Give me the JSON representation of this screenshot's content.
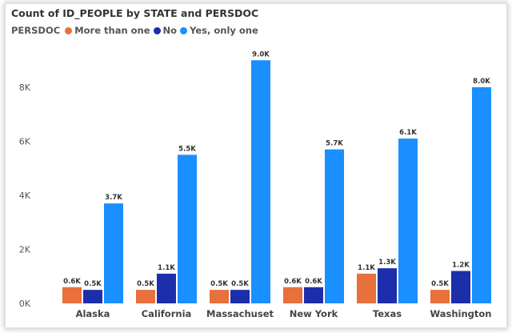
{
  "chart_data": {
    "type": "bar",
    "title": "Count of ID_PEOPLE by STATE and PERSDOC",
    "legend_title": "PERSDOC",
    "legend_position": "top-left",
    "categories": [
      "Alaska",
      "California",
      "Massachuset",
      "New York",
      "Texas",
      "Washington"
    ],
    "series": [
      {
        "name": "More than one",
        "color": "#e8703a",
        "values": [
          0.6,
          0.5,
          0.5,
          0.6,
          1.1,
          0.5
        ],
        "labels": [
          "0.6K",
          "0.5K",
          "0.5K",
          "0.6K",
          "1.1K",
          "0.5K"
        ]
      },
      {
        "name": "No",
        "color": "#1c2eaa",
        "values": [
          0.5,
          1.1,
          0.5,
          0.6,
          1.3,
          1.2
        ],
        "labels": [
          "0.5K",
          "1.1K",
          "0.5K",
          "0.6K",
          "1.3K",
          "1.2K"
        ]
      },
      {
        "name": "Yes, only one",
        "color": "#1a8fff",
        "values": [
          3.7,
          5.5,
          9.0,
          5.7,
          6.1,
          8.0
        ],
        "labels": [
          "3.7K",
          "5.5K",
          "9.0K",
          "5.7K",
          "6.1K",
          "8.0K"
        ]
      }
    ],
    "yticks": [
      0,
      2,
      4,
      6,
      8
    ],
    "ytick_labels": [
      "0K",
      "2K",
      "4K",
      "6K",
      "8K"
    ],
    "ylim": [
      0,
      9.6
    ],
    "grid": false,
    "xlabel": "",
    "ylabel": ""
  }
}
